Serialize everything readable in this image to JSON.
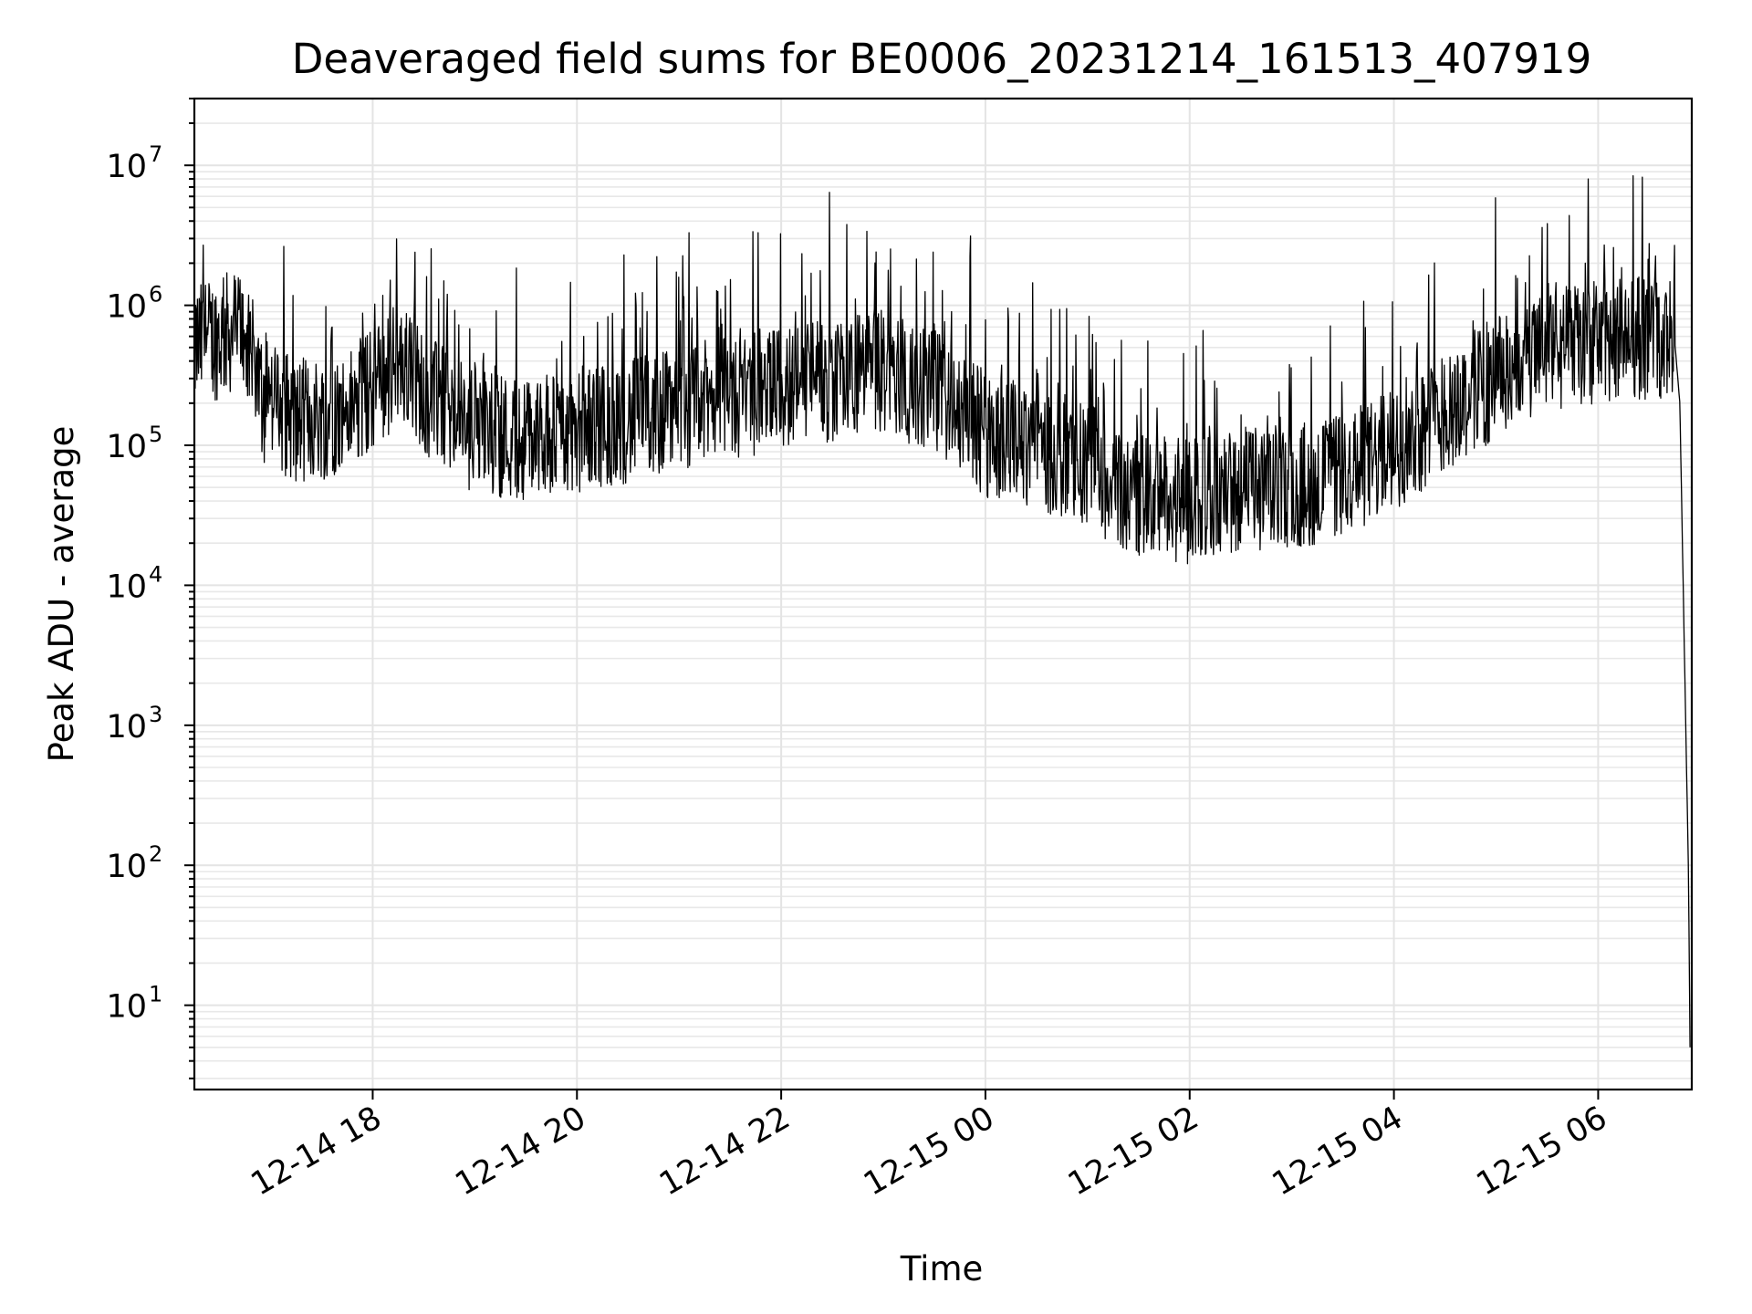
{
  "chart_data": {
    "type": "line",
    "title": "Deaveraged field sums for BE0006_20231214_161513_407919",
    "xlabel": "Time",
    "ylabel": "Peak ADU - average",
    "x_scale": "time",
    "y_scale": "log",
    "xlim": [
      "2023-12-14 16:15:13",
      "2023-12-15 06:55:00"
    ],
    "ylim": [
      2.5,
      30000000
    ],
    "grid": true,
    "x_ticks": [
      "12-14 18",
      "12-14 20",
      "12-14 22",
      "12-15 00",
      "12-15 02",
      "12-15 04",
      "12-15 06"
    ],
    "y_ticks": [
      {
        "base": "10",
        "exp": "1"
      },
      {
        "base": "10",
        "exp": "2"
      },
      {
        "base": "10",
        "exp": "3"
      },
      {
        "base": "10",
        "exp": "4"
      },
      {
        "base": "10",
        "exp": "5"
      },
      {
        "base": "10",
        "exp": "6"
      },
      {
        "base": "10",
        "exp": "7"
      }
    ],
    "series": [
      {
        "color": "#000000",
        "x": [
          "2023-12-14 16:15",
          "2023-12-14 16:30",
          "2023-12-14 16:45",
          "2023-12-14 16:50",
          "2023-12-14 17:00",
          "2023-12-14 17:15",
          "2023-12-14 17:30",
          "2023-12-14 17:45",
          "2023-12-14 18:00",
          "2023-12-14 18:15",
          "2023-12-14 18:30",
          "2023-12-14 18:45",
          "2023-12-14 19:00",
          "2023-12-14 19:30",
          "2023-12-14 20:00",
          "2023-12-14 20:30",
          "2023-12-14 21:00",
          "2023-12-14 21:30",
          "2023-12-14 22:00",
          "2023-12-14 22:30",
          "2023-12-14 23:00",
          "2023-12-14 23:30",
          "2023-12-15 00:00",
          "2023-12-15 00:30",
          "2023-12-15 01:00",
          "2023-12-15 01:30",
          "2023-12-15 02:00",
          "2023-12-15 02:30",
          "2023-12-15 03:00",
          "2023-12-15 03:30",
          "2023-12-15 04:00",
          "2023-12-15 04:30",
          "2023-12-15 05:00",
          "2023-12-15 05:30",
          "2023-12-15 06:00",
          "2023-12-15 06:30",
          "2023-12-15 06:45",
          "2023-12-15 06:48",
          "2023-12-15 06:51",
          "2023-12-15 06:53",
          "2023-12-15 06:54"
        ],
        "y": [
          500000,
          600000,
          700000,
          220000,
          200000,
          150000,
          160000,
          170000,
          250000,
          400000,
          250000,
          150000,
          130000,
          110000,
          130000,
          150000,
          180000,
          220000,
          260000,
          300000,
          330000,
          250000,
          120000,
          100000,
          70000,
          45000,
          40000,
          50000,
          50000,
          60000,
          90000,
          180000,
          300000,
          450000,
          550000,
          600000,
          550000,
          200000,
          2000,
          100,
          5
        ],
        "noise_level": 0.9
      }
    ]
  }
}
